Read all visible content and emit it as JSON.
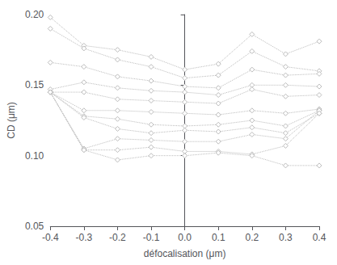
{
  "chart_data": {
    "type": "line",
    "xlabel": "défocalisation (μm)",
    "ylabel": "CD (μm)",
    "x": [
      -0.4,
      -0.3,
      -0.2,
      -0.1,
      0.0,
      0.1,
      0.2,
      0.3,
      0.4
    ],
    "xlim": [
      -0.4,
      0.4
    ],
    "ylim": [
      0.05,
      0.2
    ],
    "xticks": [
      -0.4,
      -0.3,
      -0.2,
      -0.1,
      {
        "value": 0.0,
        "label": "0.0"
      },
      0.1,
      0.2,
      0.3,
      0.4
    ],
    "yticks": [
      0.05,
      {
        "value": 0.1,
        "label": "0.10"
      },
      0.15,
      {
        "value": 0.2,
        "label": "0.20"
      }
    ],
    "color": "#bbbbbb",
    "marker": "diamond",
    "line_style": "dotted",
    "grid": false,
    "series": [
      {
        "values": [
          0.198,
          0.178,
          0.175,
          0.17,
          0.161,
          0.165,
          0.186,
          0.172,
          0.181
        ]
      },
      {
        "values": [
          0.19,
          0.176,
          0.168,
          0.163,
          0.155,
          0.157,
          0.174,
          0.163,
          0.16
        ]
      },
      {
        "values": [
          0.166,
          0.163,
          0.156,
          0.153,
          0.149,
          0.148,
          0.161,
          0.157,
          0.158
        ]
      },
      {
        "values": [
          0.147,
          0.152,
          0.148,
          0.146,
          0.145,
          0.143,
          0.15,
          0.15,
          0.149
        ]
      },
      {
        "values": [
          0.145,
          0.145,
          0.14,
          0.139,
          0.138,
          0.137,
          0.147,
          0.142,
          0.143
        ]
      },
      {
        "values": [
          0.145,
          0.132,
          0.132,
          0.131,
          0.13,
          0.129,
          0.132,
          0.13,
          0.133
        ]
      },
      {
        "values": [
          0.145,
          0.128,
          0.126,
          0.122,
          0.121,
          0.122,
          0.125,
          0.121,
          0.132
        ]
      },
      {
        "values": [
          0.145,
          0.127,
          0.119,
          0.116,
          0.118,
          0.117,
          0.12,
          0.116,
          0.13
        ]
      },
      {
        "values": [
          0.145,
          0.105,
          0.112,
          0.111,
          0.11,
          0.11,
          0.115,
          0.112,
          0.132
        ]
      },
      {
        "values": [
          0.145,
          0.104,
          0.104,
          0.106,
          0.103,
          0.103,
          0.101,
          0.107,
          0.13
        ]
      },
      {
        "values": [
          0.145,
          0.104,
          0.097,
          0.1,
          0.1,
          0.102,
          0.1,
          0.093,
          0.093
        ]
      }
    ]
  }
}
